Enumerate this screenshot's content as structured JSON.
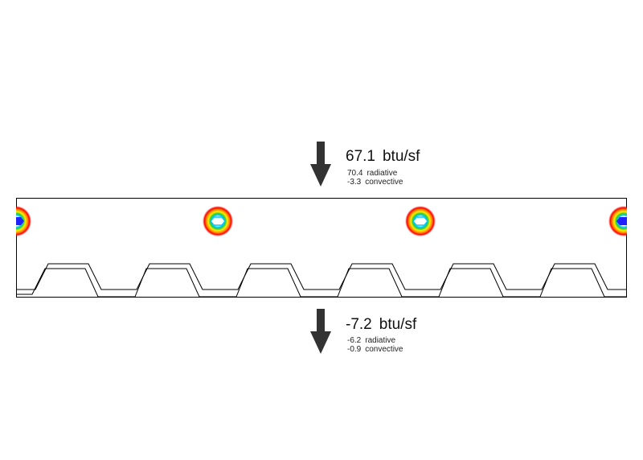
{
  "top_flux": {
    "total_value": "67.1",
    "unit": "btu/sf",
    "radiative_value": "70.4",
    "radiative_label": "radiative",
    "convective_value": "-3.3",
    "convective_label": "convective"
  },
  "bottom_flux": {
    "total_value": "-7.2",
    "unit": "btu/sf",
    "radiative_value": "-6.2",
    "radiative_label": "radiative",
    "convective_value": "-0.9",
    "convective_label": "convective"
  },
  "colors": {
    "arrow": "#333333",
    "outline": "#000000",
    "hotspot_rings": [
      "#33cc33",
      "#ffee00",
      "#ff8800",
      "#ff0000"
    ],
    "hotspot_core": [
      "#ffffff",
      "#00c8ff",
      "#2020ff"
    ]
  }
}
